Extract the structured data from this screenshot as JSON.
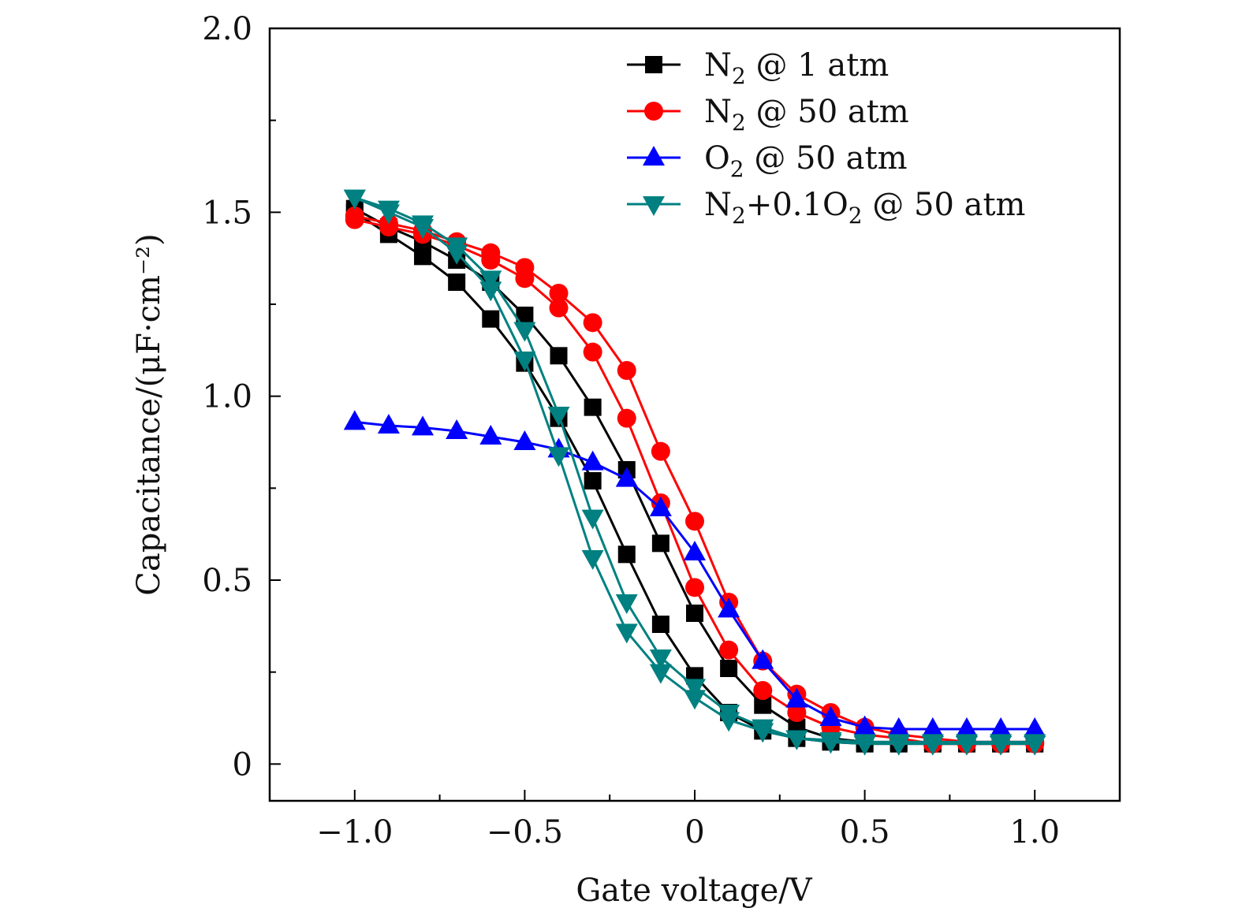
{
  "chart_data": {
    "type": "line",
    "title": "",
    "xlabel": "Gate voltage/V",
    "ylabel": "Capacitance/(μF·cm⁻²)",
    "xlim": [
      -1.25,
      1.25
    ],
    "ylim": [
      -0.1,
      2.0
    ],
    "xticks": [
      -1.0,
      -0.5,
      0,
      0.5,
      1.0
    ],
    "xtick_labels": [
      "−1.0",
      "−0.5",
      "0",
      "0.5",
      "1.0"
    ],
    "xminor": [
      -0.75,
      -0.25,
      0.25,
      0.75
    ],
    "yticks": [
      0,
      0.5,
      1.0,
      1.5,
      2.0
    ],
    "ytick_labels": [
      "0",
      "0.5",
      "1.0",
      "1.5",
      "2.0"
    ],
    "yminor": [
      0.25,
      0.75,
      1.25,
      1.75
    ],
    "grid": false,
    "legend_position": "top-right",
    "x": [
      -1.0,
      -0.9,
      -0.8,
      -0.7,
      -0.6,
      -0.5,
      -0.4,
      -0.3,
      -0.2,
      -0.1,
      0,
      0.1,
      0.2,
      0.3,
      0.4,
      0.5,
      0.6,
      0.7,
      0.8,
      0.9,
      1.0
    ],
    "series": [
      {
        "name": "N2 @ 1 atm",
        "legend_main": "N",
        "legend_sub": "2",
        "legend_rest": " @ 1 atm",
        "color": "#000000",
        "marker": "square",
        "branches": [
          [
            1.51,
            1.46,
            1.42,
            1.37,
            1.31,
            1.22,
            1.11,
            0.97,
            0.8,
            0.6,
            0.41,
            0.26,
            0.16,
            0.1,
            0.07,
            0.06,
            0.06,
            0.06,
            0.06,
            0.06,
            0.06
          ],
          [
            1.5,
            1.44,
            1.38,
            1.31,
            1.21,
            1.09,
            0.94,
            0.77,
            0.57,
            0.38,
            0.24,
            0.14,
            0.09,
            0.07,
            0.06,
            0.055,
            0.055,
            0.055,
            0.055,
            0.055,
            0.055
          ]
        ]
      },
      {
        "name": "N2 @ 50 atm",
        "legend_main": "N",
        "legend_sub": "2",
        "legend_rest": " @ 50 atm",
        "color": "#ff0000",
        "marker": "circle",
        "branches": [
          [
            1.49,
            1.47,
            1.45,
            1.42,
            1.39,
            1.35,
            1.28,
            1.2,
            1.07,
            0.85,
            0.66,
            0.44,
            0.28,
            0.19,
            0.14,
            0.1,
            0.08,
            0.07,
            0.06,
            0.06,
            0.06
          ],
          [
            1.48,
            1.46,
            1.44,
            1.41,
            1.37,
            1.32,
            1.24,
            1.12,
            0.94,
            0.71,
            0.48,
            0.31,
            0.2,
            0.14,
            0.1,
            0.08,
            0.07,
            0.055,
            0.055,
            0.055,
            0.055
          ]
        ]
      },
      {
        "name": "O2 @ 50 atm",
        "legend_main": "O",
        "legend_sub": "2",
        "legend_rest": " @ 50 atm",
        "color": "#0000ff",
        "marker": "triangle-up",
        "branches": [
          [
            0.93,
            0.92,
            0.915,
            0.905,
            0.89,
            0.875,
            0.855,
            0.82,
            0.775,
            0.695,
            0.575,
            0.42,
            0.28,
            0.175,
            0.125,
            0.1,
            0.095,
            0.095,
            0.095,
            0.095,
            0.095
          ]
        ]
      },
      {
        "name": "N2+0.1O2 @ 50 atm",
        "legend_main": "N",
        "legend_sub": "2",
        "legend_rest": "+0.1O",
        "legend_sub2": "2",
        "legend_rest2": " @ 50 atm",
        "color": "#008080",
        "marker": "triangle-down",
        "branches": [
          [
            1.54,
            1.51,
            1.47,
            1.41,
            1.32,
            1.18,
            0.95,
            0.67,
            0.44,
            0.29,
            0.21,
            0.14,
            0.1,
            0.07,
            0.065,
            0.06,
            0.06,
            0.06,
            0.06,
            0.06,
            0.06
          ],
          [
            1.54,
            1.5,
            1.46,
            1.39,
            1.29,
            1.1,
            0.84,
            0.56,
            0.36,
            0.25,
            0.18,
            0.12,
            0.09,
            0.07,
            0.06,
            0.055,
            0.055,
            0.055,
            0.055,
            0.055,
            0.055
          ]
        ]
      }
    ]
  }
}
